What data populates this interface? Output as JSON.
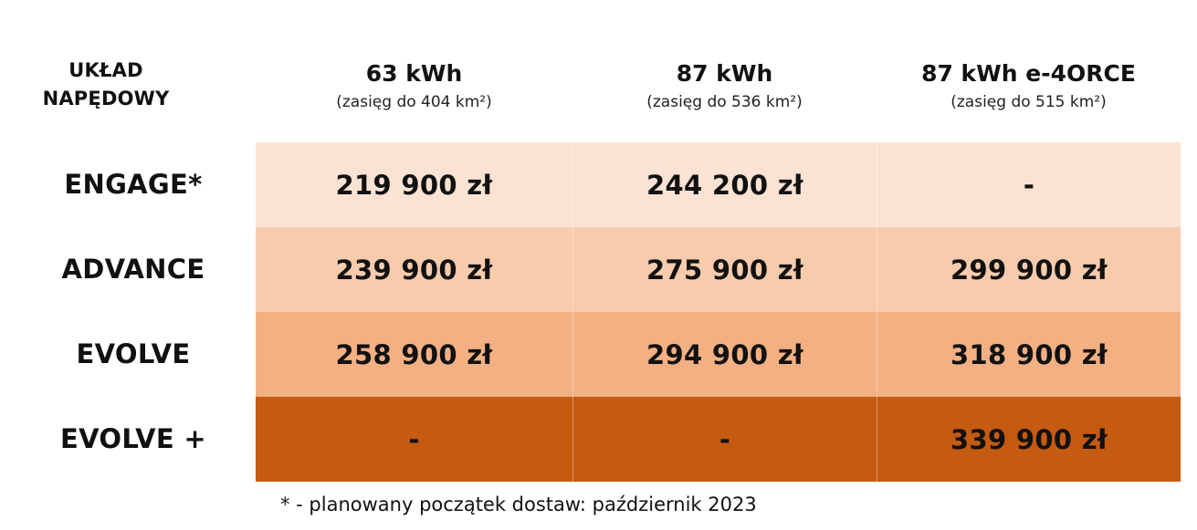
{
  "corner_header": {
    "line1": "UKŁAD",
    "line2": "NAPĘDOWY"
  },
  "columns": [
    {
      "title": "63 kWh",
      "subtitle": "(zasięg do 404 km²)"
    },
    {
      "title": "87 kWh",
      "subtitle": "(zasięg do 536 km²)"
    },
    {
      "title": "87 kWh e-4ORCE",
      "subtitle": "(zasięg do 515 km²)"
    }
  ],
  "rows": [
    {
      "label": "ENGAGE*",
      "bg": "#fbe3d4",
      "values": [
        "219 900 zł",
        "244 200 zł",
        "-"
      ]
    },
    {
      "label": "ADVANCE",
      "bg": "#f7cbac",
      "values": [
        "239 900 zł",
        "275 900 zł",
        "299 900 zł"
      ]
    },
    {
      "label": "EVOLVE",
      "bg": "#f3b083",
      "values": [
        "258 900 zł",
        "294 900 zł",
        "318 900 zł"
      ]
    },
    {
      "label": "EVOLVE +",
      "bg": "#c55a11",
      "values": [
        "-",
        "-",
        "339 900 zł"
      ]
    }
  ],
  "footnote": "* - planowany początek dostaw: październik 2023"
}
